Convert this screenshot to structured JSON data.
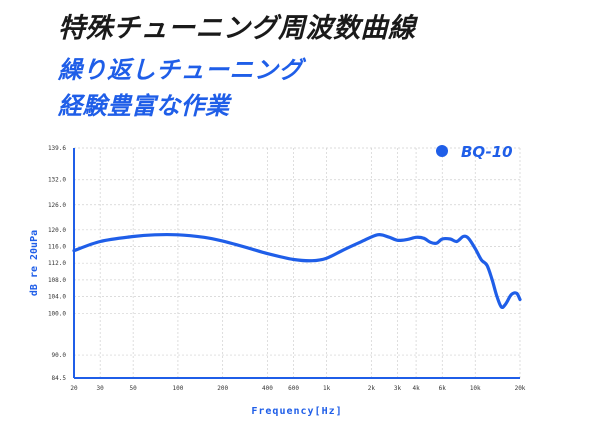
{
  "header": {
    "title": "特殊チューニング周波数曲線",
    "subtitle_line1": "繰り返しチューニング",
    "subtitle_line2": "経験豊富な作業"
  },
  "colors": {
    "accent": "#1f5ee8",
    "text": "#1a1a1a",
    "grid": "#d0d0d0"
  },
  "chart_data": {
    "type": "line",
    "title": "",
    "xlabel": "Frequency[Hz]",
    "ylabel": "dB re 20uPa",
    "x_scale": "log",
    "xlim": [
      20,
      20000
    ],
    "ylim": [
      84.5,
      139.6
    ],
    "grid": true,
    "legend_position": "top-right",
    "x_ticks": [
      20,
      30,
      50,
      100,
      200,
      400,
      600,
      1000,
      2000,
      3000,
      4000,
      6000,
      10000,
      20000
    ],
    "x_tick_labels": [
      "20",
      "30",
      "50",
      "100",
      "200",
      "400",
      "600",
      "1k",
      "2k",
      "3k",
      "4k",
      "6k",
      "10k",
      "20k"
    ],
    "y_ticks": [
      84.5,
      90.0,
      100.0,
      104.0,
      108.0,
      112.0,
      116.0,
      120.0,
      126.0,
      132.0,
      139.6
    ],
    "y_tick_labels": [
      "84.5",
      "90.0",
      "100.0",
      "104.0",
      "108.0",
      "112.0",
      "116.0",
      "120.0",
      "126.0",
      "132.0",
      "139.6"
    ],
    "series": [
      {
        "name": "BQ-10",
        "x": [
          20,
          30,
          50,
          70,
          100,
          150,
          200,
          300,
          400,
          600,
          800,
          1000,
          1300,
          1700,
          2200,
          2600,
          3000,
          3500,
          4000,
          4500,
          5000,
          5500,
          6000,
          6800,
          7500,
          8300,
          9000,
          10000,
          11000,
          12000,
          13000,
          14000,
          15000,
          16000,
          17500,
          19000,
          20000
        ],
        "y": [
          115.0,
          117.2,
          118.4,
          118.8,
          118.8,
          118.2,
          117.3,
          115.6,
          114.3,
          112.9,
          112.6,
          113.2,
          115.2,
          117.1,
          118.8,
          118.3,
          117.5,
          117.7,
          118.2,
          118.0,
          117.0,
          116.8,
          117.8,
          117.8,
          117.2,
          118.4,
          118.0,
          115.5,
          112.8,
          111.5,
          108.0,
          104.0,
          101.5,
          102.2,
          104.5,
          104.8,
          103.3
        ]
      }
    ]
  }
}
